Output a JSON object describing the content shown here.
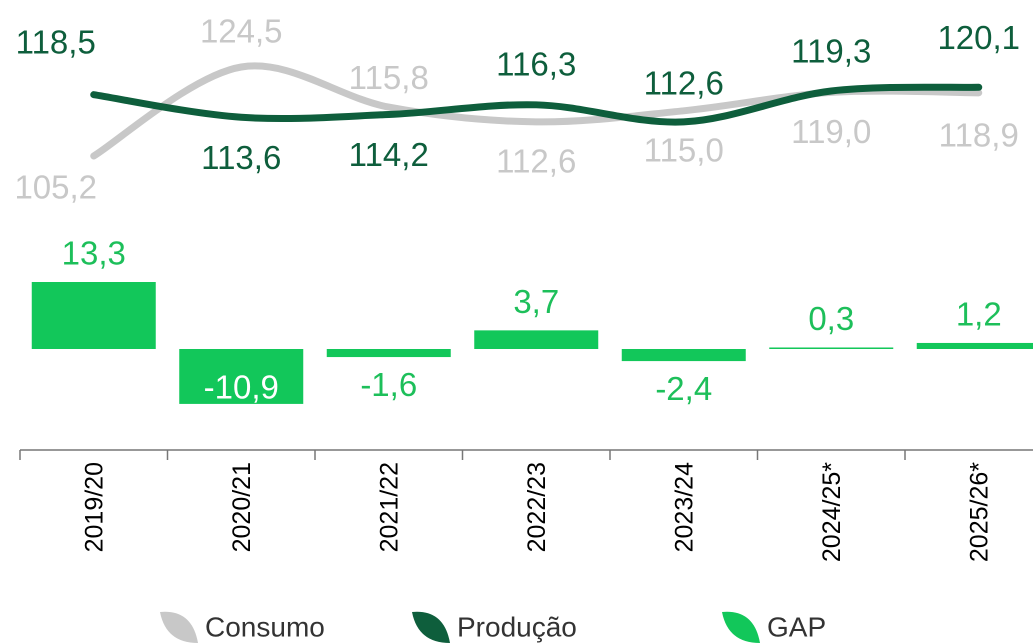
{
  "chart_data": {
    "type": "line-bar",
    "categories": [
      "2019/20",
      "2020/21",
      "2021/22",
      "2022/23",
      "2023/24",
      "2024/25*",
      "2025/26*"
    ],
    "series": [
      {
        "name": "Consumo",
        "type": "line",
        "color": "#c8c8c8",
        "values": [
          105.2,
          124.5,
          115.8,
          112.6,
          115.0,
          119.0,
          118.9
        ],
        "value_labels": [
          "105,2",
          "124,5",
          "115,8",
          "112,6",
          "115,0",
          "119,0",
          "118,9"
        ]
      },
      {
        "name": "Produção",
        "type": "line",
        "color": "#0e5e3c",
        "values": [
          118.5,
          113.6,
          114.2,
          116.3,
          112.6,
          119.3,
          120.1
        ],
        "value_labels": [
          "118,5",
          "113,6",
          "114,2",
          "116,3",
          "112,6",
          "119,3",
          "120,1"
        ]
      },
      {
        "name": "GAP",
        "type": "bar",
        "color": "#12c75a",
        "values": [
          13.3,
          -10.9,
          -1.6,
          3.7,
          -2.4,
          0.3,
          1.2
        ],
        "value_labels": [
          "13,3",
          "-10,9",
          "-1,6",
          "3,7",
          "-2,4",
          "0,3",
          "1,2"
        ]
      }
    ]
  }
}
